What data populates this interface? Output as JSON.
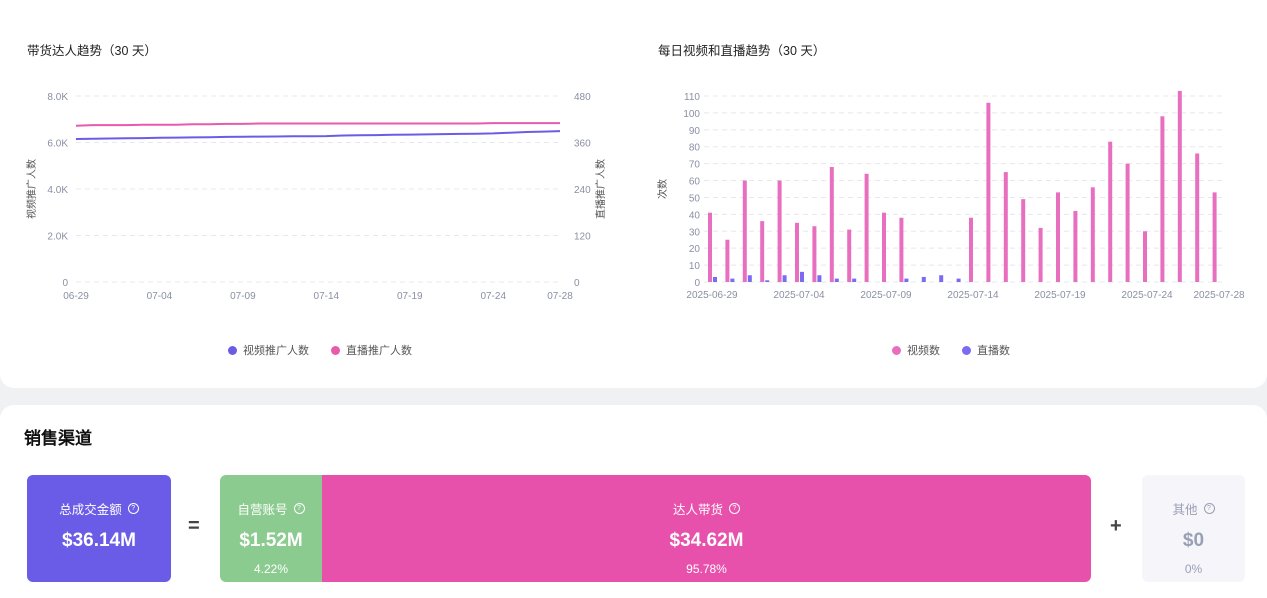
{
  "left_chart": {
    "title": "带货达人趋势（30 天）",
    "legend": [
      {
        "label": "视频推广人数",
        "color": "#6b5ce7"
      },
      {
        "label": "直播推广人数",
        "color": "#e85aab"
      }
    ]
  },
  "right_chart": {
    "title": "每日视频和直播趋势（30 天）",
    "legend": [
      {
        "label": "视频数",
        "color": "#e86fc0"
      },
      {
        "label": "直播数",
        "color": "#7a6cf0"
      }
    ]
  },
  "chart_data": [
    {
      "type": "line",
      "title": "带货达人趋势（30 天）",
      "ylabel": "视频推广人数",
      "y2label": "直播推广人数",
      "ylim": [
        0,
        8000
      ],
      "y2lim": [
        0,
        480
      ],
      "yticks": [
        "0",
        "2.0K",
        "4.0K",
        "6.0K",
        "8.0K"
      ],
      "y2ticks": [
        "0",
        "120",
        "240",
        "360",
        "480"
      ],
      "xticks": [
        "06-29",
        "07-04",
        "07-09",
        "07-14",
        "07-19",
        "07-24",
        "07-28"
      ],
      "x": [
        "06-29",
        "06-30",
        "07-01",
        "07-02",
        "07-03",
        "07-04",
        "07-05",
        "07-06",
        "07-07",
        "07-08",
        "07-09",
        "07-10",
        "07-11",
        "07-12",
        "07-13",
        "07-14",
        "07-15",
        "07-16",
        "07-17",
        "07-18",
        "07-19",
        "07-20",
        "07-21",
        "07-22",
        "07-23",
        "07-24",
        "07-25",
        "07-26",
        "07-27",
        "07-28"
      ],
      "series": [
        {
          "name": "视频推广人数",
          "axis": "left",
          "color": "#6b5ce7",
          "values": [
            6150,
            6160,
            6170,
            6180,
            6190,
            6200,
            6210,
            6220,
            6230,
            6240,
            6250,
            6255,
            6260,
            6265,
            6270,
            6275,
            6300,
            6310,
            6320,
            6330,
            6340,
            6350,
            6360,
            6370,
            6380,
            6390,
            6420,
            6450,
            6470,
            6490
          ]
        },
        {
          "name": "直播推广人数",
          "axis": "right",
          "color": "#e85aab",
          "values": [
            403,
            405,
            405,
            405,
            406,
            406,
            406,
            407,
            407,
            408,
            408,
            409,
            409,
            409,
            409,
            409,
            409,
            409,
            409,
            409,
            409,
            409,
            409,
            409,
            409,
            410,
            410,
            410,
            410,
            410
          ]
        }
      ]
    },
    {
      "type": "bar",
      "title": "每日视频和直播趋势（30 天）",
      "ylabel": "次数",
      "ylim": [
        0,
        110
      ],
      "yticks": [
        "0",
        "10",
        "20",
        "30",
        "40",
        "50",
        "60",
        "70",
        "80",
        "90",
        "100",
        "110"
      ],
      "xticks": [
        "2025-06-29",
        "2025-07-04",
        "2025-07-09",
        "2025-07-14",
        "2025-07-19",
        "2025-07-24",
        "2025-07-28"
      ],
      "categories": [
        "2025-06-29",
        "2025-06-30",
        "2025-07-01",
        "2025-07-02",
        "2025-07-03",
        "2025-07-04",
        "2025-07-05",
        "2025-07-06",
        "2025-07-07",
        "2025-07-08",
        "2025-07-09",
        "2025-07-10",
        "2025-07-11",
        "2025-07-12",
        "2025-07-13",
        "2025-07-14",
        "2025-07-15",
        "2025-07-16",
        "2025-07-17",
        "2025-07-18",
        "2025-07-19",
        "2025-07-20",
        "2025-07-21",
        "2025-07-22",
        "2025-07-23",
        "2025-07-24",
        "2025-07-25",
        "2025-07-26",
        "2025-07-27",
        "2025-07-28"
      ],
      "series": [
        {
          "name": "视频数",
          "color": "#e86fc0",
          "values": [
            41,
            25,
            60,
            36,
            60,
            35,
            33,
            68,
            31,
            64,
            41,
            38,
            0,
            0,
            0,
            38,
            106,
            65,
            49,
            32,
            53,
            42,
            56,
            83,
            70,
            30,
            98,
            113,
            76,
            53
          ]
        },
        {
          "name": "直播数",
          "color": "#7a6cf0",
          "values": [
            3,
            2,
            4,
            1,
            4,
            6,
            4,
            2,
            2,
            0,
            0,
            2,
            3,
            4,
            2,
            0,
            0,
            0,
            0,
            0,
            0,
            0,
            0,
            0,
            0,
            0,
            0,
            0,
            0,
            0
          ]
        }
      ]
    }
  ],
  "sales_channel": {
    "title": "销售渠道",
    "total": {
      "label": "总成交金额",
      "value": "$36.14M",
      "color": "#6b5ce7"
    },
    "equals": "=",
    "plus": "+",
    "self": {
      "label": "自营账号",
      "value": "$1.52M",
      "pct": "4.22%",
      "share": 4.22,
      "color": "#8ccb8f"
    },
    "creator": {
      "label": "达人带货",
      "value": "$34.62M",
      "pct": "95.78%",
      "share": 95.78,
      "color": "#e851ab"
    },
    "other": {
      "label": "其他",
      "value": "$0",
      "pct": "0%",
      "color": "#f5f5fa"
    },
    "help_icon": "question-circle-icon"
  }
}
